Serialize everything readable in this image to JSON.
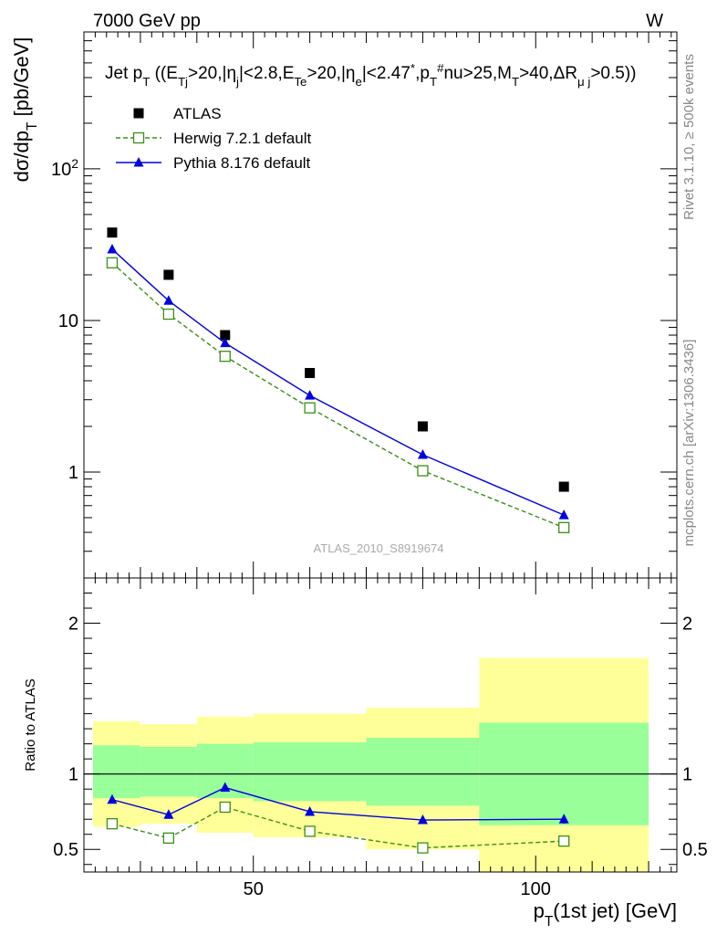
{
  "header": {
    "left": "7000 GeV pp",
    "right": "W"
  },
  "side_labels": {
    "rivet": "Rivet 3.1.10, ≥ 500k events",
    "mcplots": "mcplots.cern.ch [arXiv:1306.3436]"
  },
  "watermark": "ATLAS_2010_S8919674",
  "chart_data": [
    {
      "panel": "main",
      "type": "scatter",
      "title": "Jet p_T ((E_Tj>20,|η_j|<2.8,E_Te>20,|η_e|<2.47*,p_T^#nu>25,M_T>40,ΔR_μj>0.5))",
      "ylabel": "dσ/dp_T [pb/GeV]",
      "xlabel": "",
      "yscale": "log",
      "ylim": [
        0.2,
        800
      ],
      "xlim": [
        20,
        125
      ],
      "ytick_labels": [
        "1",
        "10",
        "10^2"
      ],
      "legend_position": "top-left",
      "series": [
        {
          "name": "ATLAS",
          "style": "square-marker",
          "color": "#000000",
          "x": [
            25,
            35,
            45,
            60,
            80,
            105
          ],
          "y": [
            38,
            20,
            8.0,
            4.5,
            2.0,
            0.8
          ]
        },
        {
          "name": "Herwig 7.2.1 default",
          "style": "dashed-open-square",
          "color": "#3a8f17",
          "x": [
            25,
            35,
            45,
            60,
            80,
            105
          ],
          "y": [
            24,
            11,
            5.8,
            2.65,
            1.02,
            0.43
          ]
        },
        {
          "name": "Pythia 8.176 default",
          "style": "solid-triangle",
          "color": "#0000dd",
          "x": [
            25,
            35,
            45,
            60,
            80,
            105
          ],
          "y": [
            29.5,
            13.5,
            7.1,
            3.2,
            1.3,
            0.52
          ]
        }
      ]
    },
    {
      "panel": "ratio",
      "type": "line",
      "ylabel": "Ratio to ATLAS",
      "xlabel": "p_T(1st jet) [GeV]",
      "ylim": [
        0.35,
        2.3
      ],
      "xlim": [
        20,
        125
      ],
      "xtick_labels": [
        "50",
        "100"
      ],
      "ytick_labels": [
        "0.5",
        "1",
        "2"
      ],
      "bands": [
        {
          "xmin": 20,
          "xmax": 30,
          "yellow": [
            0.65,
            1.35
          ],
          "green": [
            0.84,
            1.19
          ]
        },
        {
          "xmin": 30,
          "xmax": 40,
          "yellow": [
            0.67,
            1.33
          ],
          "green": [
            0.85,
            1.18
          ]
        },
        {
          "xmin": 40,
          "xmax": 50,
          "yellow": [
            0.61,
            1.38
          ],
          "green": [
            0.84,
            1.2
          ]
        },
        {
          "xmin": 50,
          "xmax": 70,
          "yellow": [
            0.58,
            1.4
          ],
          "green": [
            0.82,
            1.21
          ]
        },
        {
          "xmin": 70,
          "xmax": 90,
          "yellow": [
            0.5,
            1.44
          ],
          "green": [
            0.79,
            1.24
          ]
        },
        {
          "xmin": 90,
          "xmax": 120,
          "yellow": [
            0.35,
            1.77
          ],
          "green": [
            0.66,
            1.34
          ]
        }
      ],
      "series": [
        {
          "name": "Herwig 7.2.1 default",
          "style": "dashed-open-square",
          "color": "#3a8f17",
          "x": [
            25,
            35,
            45,
            60,
            80,
            105
          ],
          "y": [
            0.67,
            0.575,
            0.78,
            0.62,
            0.51,
            0.555
          ]
        },
        {
          "name": "Pythia 8.176 default",
          "style": "solid-triangle",
          "color": "#0000dd",
          "x": [
            25,
            35,
            45,
            60,
            80,
            105
          ],
          "y": [
            0.83,
            0.73,
            0.91,
            0.75,
            0.695,
            0.7
          ],
          "err": [
            0,
            0,
            0,
            0,
            0.02,
            0.03
          ]
        }
      ]
    }
  ]
}
